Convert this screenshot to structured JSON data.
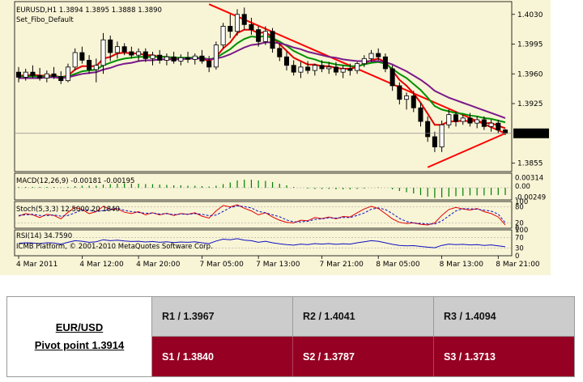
{
  "chart_data": {
    "type": "candlestick",
    "symbol_header": "EURUSD,H1  1.3894 1.3895 1.3888 1.3890",
    "indicator_label": "Set_Fibo_Default",
    "y_ticks": [
      1.403,
      1.3995,
      1.396,
      1.3925,
      1.3855
    ],
    "current_price": "1.3890",
    "ylim": [
      1.3845,
      1.4045
    ],
    "x_tick_labels": [
      "4 Mar 2011",
      "4 Mar 12:00",
      "4 Mar 20:00",
      "7 Mar 05:00",
      "7 Mar 13:00",
      "7 Mar 21:00",
      "8 Mar 05:00",
      "8 Mar 13:00",
      "8 Mar 21:00"
    ],
    "candles": [
      {
        "o": 1.3962,
        "h": 1.3968,
        "l": 1.395,
        "c": 1.3956
      },
      {
        "o": 1.3956,
        "h": 1.3966,
        "l": 1.3952,
        "c": 1.3962
      },
      {
        "o": 1.3962,
        "h": 1.397,
        "l": 1.3955,
        "c": 1.3958
      },
      {
        "o": 1.3958,
        "h": 1.3967,
        "l": 1.3952,
        "c": 1.3955
      },
      {
        "o": 1.3955,
        "h": 1.3964,
        "l": 1.395,
        "c": 1.396
      },
      {
        "o": 1.396,
        "h": 1.3968,
        "l": 1.3954,
        "c": 1.3957
      },
      {
        "o": 1.3957,
        "h": 1.3963,
        "l": 1.3948,
        "c": 1.3952
      },
      {
        "o": 1.3952,
        "h": 1.3972,
        "l": 1.395,
        "c": 1.3968
      },
      {
        "o": 1.3968,
        "h": 1.399,
        "l": 1.3964,
        "c": 1.3985
      },
      {
        "o": 1.3985,
        "h": 1.3992,
        "l": 1.3972,
        "c": 1.3976
      },
      {
        "o": 1.3976,
        "h": 1.3982,
        "l": 1.396,
        "c": 1.3965
      },
      {
        "o": 1.3965,
        "h": 1.3978,
        "l": 1.395,
        "c": 1.397
      },
      {
        "o": 1.397,
        "h": 1.4008,
        "l": 1.396,
        "c": 1.4
      },
      {
        "o": 1.4,
        "h": 1.4005,
        "l": 1.3975,
        "c": 1.3985
      },
      {
        "o": 1.3985,
        "h": 1.3998,
        "l": 1.3978,
        "c": 1.3992
      },
      {
        "o": 1.3992,
        "h": 1.3996,
        "l": 1.3982,
        "c": 1.3986
      },
      {
        "o": 1.3986,
        "h": 1.3992,
        "l": 1.3978,
        "c": 1.3982
      },
      {
        "o": 1.3982,
        "h": 1.399,
        "l": 1.3975,
        "c": 1.3986
      },
      {
        "o": 1.3986,
        "h": 1.399,
        "l": 1.3974,
        "c": 1.3978
      },
      {
        "o": 1.3978,
        "h": 1.3986,
        "l": 1.397,
        "c": 1.3982
      },
      {
        "o": 1.3982,
        "h": 1.3988,
        "l": 1.3972,
        "c": 1.3976
      },
      {
        "o": 1.3976,
        "h": 1.3984,
        "l": 1.397,
        "c": 1.398
      },
      {
        "o": 1.398,
        "h": 1.3986,
        "l": 1.3972,
        "c": 1.3975
      },
      {
        "o": 1.3975,
        "h": 1.3983,
        "l": 1.397,
        "c": 1.3979
      },
      {
        "o": 1.3979,
        "h": 1.3986,
        "l": 1.3973,
        "c": 1.3977
      },
      {
        "o": 1.3977,
        "h": 1.3984,
        "l": 1.3971,
        "c": 1.3981
      },
      {
        "o": 1.3981,
        "h": 1.3988,
        "l": 1.3972,
        "c": 1.3975
      },
      {
        "o": 1.3975,
        "h": 1.3981,
        "l": 1.3962,
        "c": 1.3968
      },
      {
        "o": 1.3968,
        "h": 1.3998,
        "l": 1.3965,
        "c": 1.3994
      },
      {
        "o": 1.3994,
        "h": 1.402,
        "l": 1.399,
        "c": 1.4016
      },
      {
        "o": 1.4016,
        "h": 1.403,
        "l": 1.4002,
        "c": 1.401
      },
      {
        "o": 1.401,
        "h": 1.4036,
        "l": 1.4005,
        "c": 1.403
      },
      {
        "o": 1.403,
        "h": 1.4038,
        "l": 1.4012,
        "c": 1.4018
      },
      {
        "o": 1.4018,
        "h": 1.4026,
        "l": 1.4006,
        "c": 1.4012
      },
      {
        "o": 1.4012,
        "h": 1.4016,
        "l": 1.3992,
        "c": 1.3998
      },
      {
        "o": 1.3998,
        "h": 1.4016,
        "l": 1.3994,
        "c": 1.401
      },
      {
        "o": 1.401,
        "h": 1.4014,
        "l": 1.3985,
        "c": 1.399
      },
      {
        "o": 1.399,
        "h": 1.3996,
        "l": 1.3975,
        "c": 1.398
      },
      {
        "o": 1.398,
        "h": 1.3986,
        "l": 1.3964,
        "c": 1.397
      },
      {
        "o": 1.397,
        "h": 1.3976,
        "l": 1.3958,
        "c": 1.3962
      },
      {
        "o": 1.3962,
        "h": 1.3974,
        "l": 1.3955,
        "c": 1.3968
      },
      {
        "o": 1.3968,
        "h": 1.3975,
        "l": 1.396,
        "c": 1.3964
      },
      {
        "o": 1.3964,
        "h": 1.3972,
        "l": 1.3958,
        "c": 1.397
      },
      {
        "o": 1.397,
        "h": 1.3976,
        "l": 1.3962,
        "c": 1.3966
      },
      {
        "o": 1.3966,
        "h": 1.3974,
        "l": 1.396,
        "c": 1.3968
      },
      {
        "o": 1.3968,
        "h": 1.3974,
        "l": 1.3958,
        "c": 1.3962
      },
      {
        "o": 1.3962,
        "h": 1.397,
        "l": 1.3955,
        "c": 1.3966
      },
      {
        "o": 1.3966,
        "h": 1.3972,
        "l": 1.3958,
        "c": 1.3964
      },
      {
        "o": 1.3964,
        "h": 1.3974,
        "l": 1.396,
        "c": 1.3972
      },
      {
        "o": 1.3972,
        "h": 1.3982,
        "l": 1.3968,
        "c": 1.3978
      },
      {
        "o": 1.3978,
        "h": 1.3988,
        "l": 1.3974,
        "c": 1.3984
      },
      {
        "o": 1.3984,
        "h": 1.399,
        "l": 1.3976,
        "c": 1.398
      },
      {
        "o": 1.398,
        "h": 1.3984,
        "l": 1.3962,
        "c": 1.3966
      },
      {
        "o": 1.3966,
        "h": 1.397,
        "l": 1.394,
        "c": 1.3946
      },
      {
        "o": 1.3946,
        "h": 1.395,
        "l": 1.3924,
        "c": 1.393
      },
      {
        "o": 1.393,
        "h": 1.3938,
        "l": 1.3918,
        "c": 1.3934
      },
      {
        "o": 1.3934,
        "h": 1.394,
        "l": 1.3915,
        "c": 1.392
      },
      {
        "o": 1.392,
        "h": 1.3926,
        "l": 1.3898,
        "c": 1.3904
      },
      {
        "o": 1.3904,
        "h": 1.391,
        "l": 1.388,
        "c": 1.3886
      },
      {
        "o": 1.3886,
        "h": 1.3892,
        "l": 1.3868,
        "c": 1.3874
      },
      {
        "o": 1.3874,
        "h": 1.3905,
        "l": 1.3868,
        "c": 1.39
      },
      {
        "o": 1.39,
        "h": 1.3918,
        "l": 1.3896,
        "c": 1.3912
      },
      {
        "o": 1.3912,
        "h": 1.3916,
        "l": 1.3898,
        "c": 1.3904
      },
      {
        "o": 1.3904,
        "h": 1.3912,
        "l": 1.39,
        "c": 1.3908
      },
      {
        "o": 1.3908,
        "h": 1.3914,
        "l": 1.3898,
        "c": 1.3902
      },
      {
        "o": 1.3902,
        "h": 1.391,
        "l": 1.3896,
        "c": 1.3906
      },
      {
        "o": 1.3906,
        "h": 1.391,
        "l": 1.3894,
        "c": 1.3898
      },
      {
        "o": 1.3898,
        "h": 1.3906,
        "l": 1.3892,
        "c": 1.3902
      },
      {
        "o": 1.3902,
        "h": 1.3906,
        "l": 1.389,
        "c": 1.3894
      },
      {
        "o": 1.3894,
        "h": 1.3895,
        "l": 1.3888,
        "c": 1.389
      }
    ],
    "series": [
      {
        "values": [
          1.3958,
          1.3958,
          1.3959,
          1.3958,
          1.3958,
          1.3958,
          1.3956,
          1.3958,
          1.3965,
          1.3969,
          1.3969,
          1.3969,
          1.3978,
          1.398,
          1.3984,
          1.3985,
          1.3984,
          1.3984,
          1.3982,
          1.3982,
          1.398,
          1.398,
          1.3978,
          1.3978,
          1.3978,
          1.3979,
          1.3978,
          1.3975,
          1.398,
          1.399,
          1.3997,
          1.4008,
          1.4012,
          1.4012,
          1.4008,
          1.4009,
          1.4003,
          1.3995,
          1.3987,
          1.3979,
          1.3975,
          1.3971,
          1.3971,
          1.3969,
          1.3969,
          1.3967,
          1.3966,
          1.3966,
          1.3968,
          1.3972,
          1.3976,
          1.3978,
          1.3974,
          1.3964,
          1.3953,
          1.3946,
          1.3937,
          1.3926,
          1.3913,
          1.39,
          1.39,
          1.3904,
          1.3904,
          1.3905,
          1.3904,
          1.3905,
          1.3902,
          1.3902,
          1.3899,
          1.3896
        ]
      },
      {
        "values": [
          1.3957,
          1.3957,
          1.3957,
          1.3957,
          1.3957,
          1.3957,
          1.3956,
          1.3957,
          1.396,
          1.3963,
          1.3964,
          1.3965,
          1.397,
          1.3973,
          1.3976,
          1.3978,
          1.3979,
          1.398,
          1.398,
          1.398,
          1.398,
          1.398,
          1.3979,
          1.3979,
          1.3979,
          1.3979,
          1.3979,
          1.3977,
          1.3979,
          1.3984,
          1.3989,
          1.3996,
          1.4001,
          1.4004,
          1.4003,
          1.4005,
          1.4002,
          1.3998,
          1.3993,
          1.3987,
          1.3983,
          1.3979,
          1.3977,
          1.3974,
          1.3973,
          1.3971,
          1.397,
          1.3969,
          1.3969,
          1.3971,
          1.3973,
          1.3974,
          1.3972,
          1.3966,
          1.396,
          1.3955,
          1.3948,
          1.3941,
          1.3932,
          1.3922,
          1.3918,
          1.3916,
          1.3914,
          1.3913,
          1.3911,
          1.391,
          1.3908,
          1.3907,
          1.3905,
          1.3903
        ]
      },
      {
        "values": [
          1.3955,
          1.3955,
          1.3955,
          1.3955,
          1.3956,
          1.3956,
          1.3955,
          1.3956,
          1.3958,
          1.396,
          1.3961,
          1.3962,
          1.3965,
          1.3967,
          1.397,
          1.3972,
          1.3973,
          1.3975,
          1.3976,
          1.3976,
          1.3977,
          1.3977,
          1.3977,
          1.3977,
          1.3978,
          1.3978,
          1.3978,
          1.3977,
          1.3978,
          1.398,
          1.3983,
          1.3987,
          1.3991,
          1.3994,
          1.3995,
          1.3997,
          1.3997,
          1.3996,
          1.3994,
          1.3991,
          1.3989,
          1.3986,
          1.3984,
          1.3982,
          1.398,
          1.3979,
          1.3977,
          1.3976,
          1.3975,
          1.3975,
          1.3975,
          1.3975,
          1.3974,
          1.3971,
          1.3967,
          1.3963,
          1.3958,
          1.3953,
          1.3947,
          1.394,
          1.3936,
          1.3932,
          1.3929,
          1.3926,
          1.3923,
          1.392,
          1.3917,
          1.3914,
          1.3911,
          1.3908
        ]
      }
    ],
    "trendlines": [
      {
        "from": [
          27,
          1.4042
        ],
        "to": [
          69,
          1.389
        ]
      },
      {
        "from": [
          58,
          1.385
        ],
        "to": [
          69,
          1.389
        ]
      }
    ],
    "macd": {
      "label": "MACD(12,26,9) -0.00181 -0.00195",
      "y_ticks": [
        "0.00314",
        "0.00",
        "-0.00249"
      ],
      "ylim": [
        -0.003,
        0.0036
      ],
      "values": [
        0.0002,
        0.0002,
        0.0002,
        0.0002,
        0.0002,
        0.0002,
        0.0001,
        0.0002,
        0.0004,
        0.0005,
        0.0005,
        0.0005,
        0.0008,
        0.0009,
        0.001,
        0.0011,
        0.001,
        0.001,
        0.0009,
        0.0009,
        0.0008,
        0.0007,
        0.0006,
        0.0006,
        0.0005,
        0.0005,
        0.0004,
        0.0003,
        0.0005,
        0.0009,
        0.0013,
        0.0018,
        0.002,
        0.002,
        0.0018,
        0.0017,
        0.0014,
        0.001,
        0.0006,
        0.0002,
        0.0,
        -0.0002,
        -0.0003,
        -0.0003,
        -0.0003,
        -0.0004,
        -0.0004,
        -0.0004,
        -0.0003,
        -0.0002,
        0.0,
        0.0001,
        0.0,
        -0.0004,
        -0.0008,
        -0.0011,
        -0.0014,
        -0.0018,
        -0.0022,
        -0.0025,
        -0.0024,
        -0.0022,
        -0.0021,
        -0.002,
        -0.0019,
        -0.0019,
        -0.0019,
        -0.0018,
        -0.0018,
        -0.0018
      ]
    },
    "stoch": {
      "label": "Stoch(5,3,3) 12.5000 20.1840",
      "y_ticks": [
        "100",
        "80",
        "20",
        "0"
      ],
      "ylim": [
        0,
        100
      ],
      "main": [
        45,
        55,
        50,
        40,
        52,
        48,
        35,
        60,
        78,
        70,
        55,
        62,
        82,
        70,
        72,
        60,
        55,
        62,
        50,
        58,
        50,
        56,
        48,
        55,
        52,
        58,
        45,
        38,
        65,
        85,
        80,
        88,
        75,
        65,
        50,
        58,
        42,
        30,
        22,
        20,
        30,
        28,
        40,
        36,
        42,
        35,
        44,
        42,
        58,
        72,
        82,
        74,
        55,
        35,
        22,
        18,
        20,
        15,
        12,
        20,
        48,
        70,
        78,
        72,
        68,
        74,
        62,
        55,
        42,
        12.5
      ],
      "signal": [
        48,
        50,
        52,
        48,
        47,
        50,
        45,
        48,
        58,
        69,
        68,
        62,
        66,
        71,
        75,
        67,
        62,
        59,
        56,
        57,
        53,
        55,
        51,
        53,
        52,
        55,
        52,
        47,
        49,
        63,
        77,
        84,
        81,
        76,
        63,
        58,
        50,
        43,
        31,
        24,
        24,
        26,
        33,
        35,
        39,
        38,
        40,
        40,
        48,
        57,
        71,
        76,
        70,
        55,
        37,
        25,
        20,
        18,
        16,
        16,
        27,
        46,
        65,
        73,
        73,
        71,
        68,
        64,
        53,
        20.2
      ]
    },
    "rsi": {
      "label": "RSI(14) 34.7590",
      "platform_label": "ICMB Platform, © 2001-2010 MetaQuotes Software Corp.",
      "y_ticks": [
        "100",
        "70",
        "30",
        "0"
      ],
      "ylim": [
        0,
        100
      ],
      "values": [
        48,
        50,
        49,
        47,
        50,
        49,
        45,
        52,
        58,
        56,
        52,
        54,
        62,
        58,
        60,
        57,
        55,
        56,
        53,
        55,
        52,
        54,
        51,
        53,
        52,
        54,
        50,
        47,
        57,
        64,
        62,
        66,
        60,
        58,
        52,
        56,
        50,
        46,
        43,
        41,
        45,
        43,
        47,
        45,
        47,
        44,
        46,
        45,
        50,
        54,
        58,
        56,
        50,
        44,
        40,
        38,
        39,
        36,
        33,
        31,
        40,
        45,
        43,
        44,
        42,
        43,
        40,
        42,
        38,
        34.76
      ]
    },
    "pivot": {
      "pair": "EUR/USD",
      "pivot_label": "Pivot point 1.3914",
      "resistances": [
        "R1 / 1.3967",
        "R2 / 1.4041",
        "R3 / 1.4094"
      ],
      "supports": [
        "S1 / 1.3840",
        "S2 / 1.3787",
        "S3 / 1.3713"
      ]
    },
    "colors": {
      "background": "#f8f4d6",
      "candle": "#000000",
      "ma_fast": "#e00000",
      "ma_mid": "#009000",
      "ma_slow": "#7a1a8a",
      "trendline": "#ff0000",
      "macd_bars": "#008000",
      "stoch_main": "#e00000",
      "stoch_signal": "#1010c0",
      "rsi": "#1010c0",
      "resistance_row": "#cccccc",
      "support_row": "#960022"
    }
  }
}
